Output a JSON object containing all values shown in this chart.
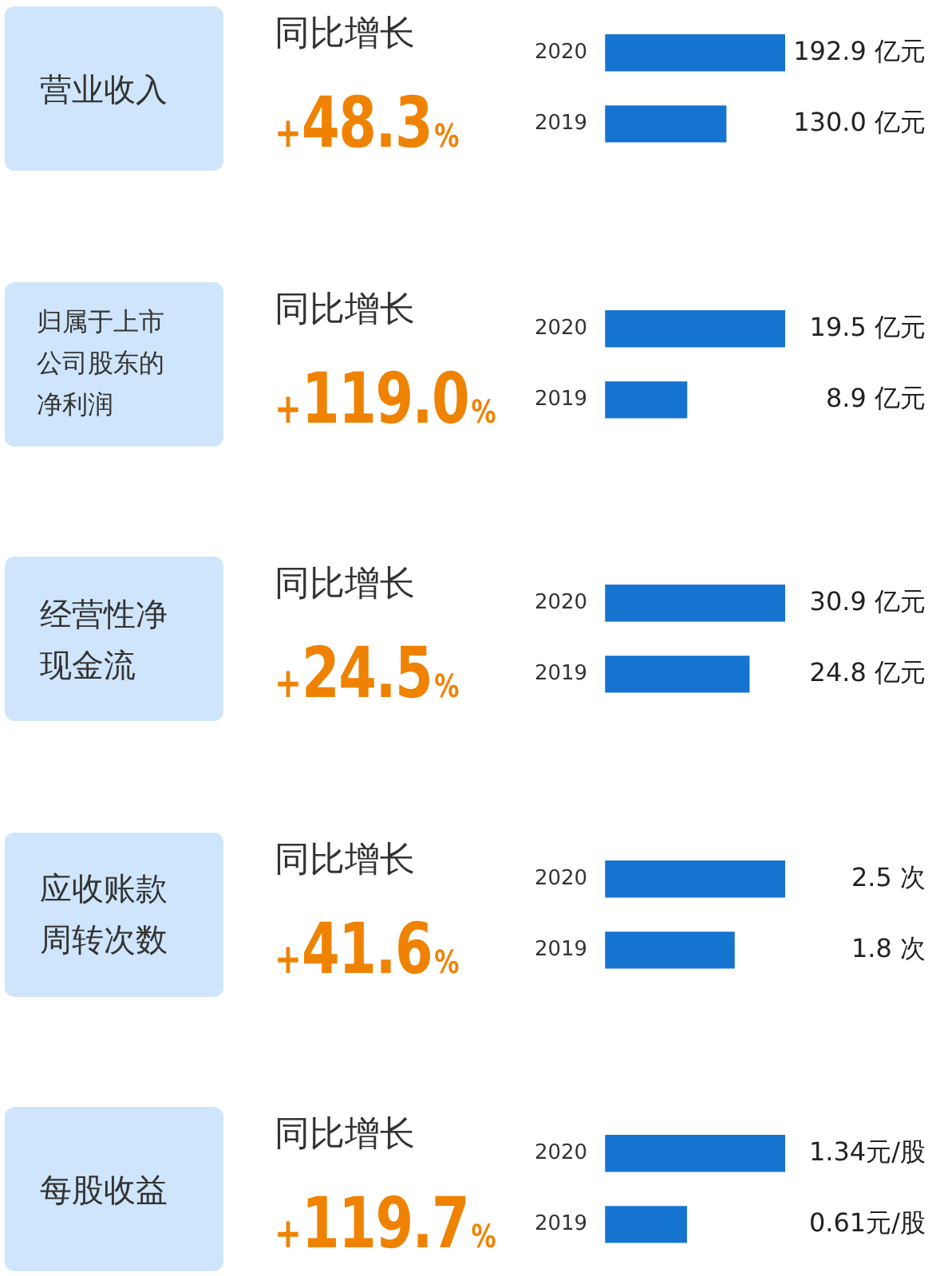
{
  "chart_data": [
    {
      "type": "bar",
      "orientation": "horizontal",
      "subtitle": "同比增长",
      "annotations": [
        "营业收入",
        "+48.3%"
      ],
      "categories": [
        "2020",
        "2019"
      ],
      "values": [
        192.9,
        130.0
      ],
      "value_labels": [
        "192.9 亿元",
        "130.0 亿元"
      ],
      "color": "#1574d0",
      "tick_labels": "y"
    },
    {
      "type": "bar",
      "orientation": "horizontal",
      "subtitle": "同比增长",
      "annotations": [
        "归属于上市公司股东的净利润",
        "+119.0%"
      ],
      "categories": [
        "2020",
        "2019"
      ],
      "values": [
        19.5,
        8.9
      ],
      "value_labels": [
        "19.5 亿元",
        "8.9 亿元"
      ],
      "color": "#1574d0",
      "tick_labels": "y"
    },
    {
      "type": "bar",
      "orientation": "horizontal",
      "subtitle": "同比增长",
      "annotations": [
        "经营性净现金流",
        "+24.5%"
      ],
      "categories": [
        "2020",
        "2019"
      ],
      "values": [
        30.9,
        24.8
      ],
      "value_labels": [
        "30.9 亿元",
        "24.8 亿元"
      ],
      "color": "#1574d0",
      "tick_labels": "y"
    },
    {
      "type": "bar",
      "orientation": "horizontal",
      "subtitle": "同比增长",
      "annotations": [
        "应收账款周转次数",
        "+41.6%"
      ],
      "categories": [
        "2020",
        "2019"
      ],
      "values": [
        2.5,
        1.8
      ],
      "value_labels": [
        "2.5 次",
        "1.8 次"
      ],
      "color": "#1574d0",
      "tick_labels": "y"
    },
    {
      "type": "bar",
      "orientation": "horizontal",
      "subtitle": "同比增长",
      "annotations": [
        "每股收益",
        "+119.7%"
      ],
      "categories": [
        "2020",
        "2019"
      ],
      "values": [
        1.34,
        0.61
      ],
      "value_labels": [
        "1.34元/股",
        "0.61元/股"
      ],
      "color": "#1574d0",
      "tick_labels": "y"
    }
  ]
}
